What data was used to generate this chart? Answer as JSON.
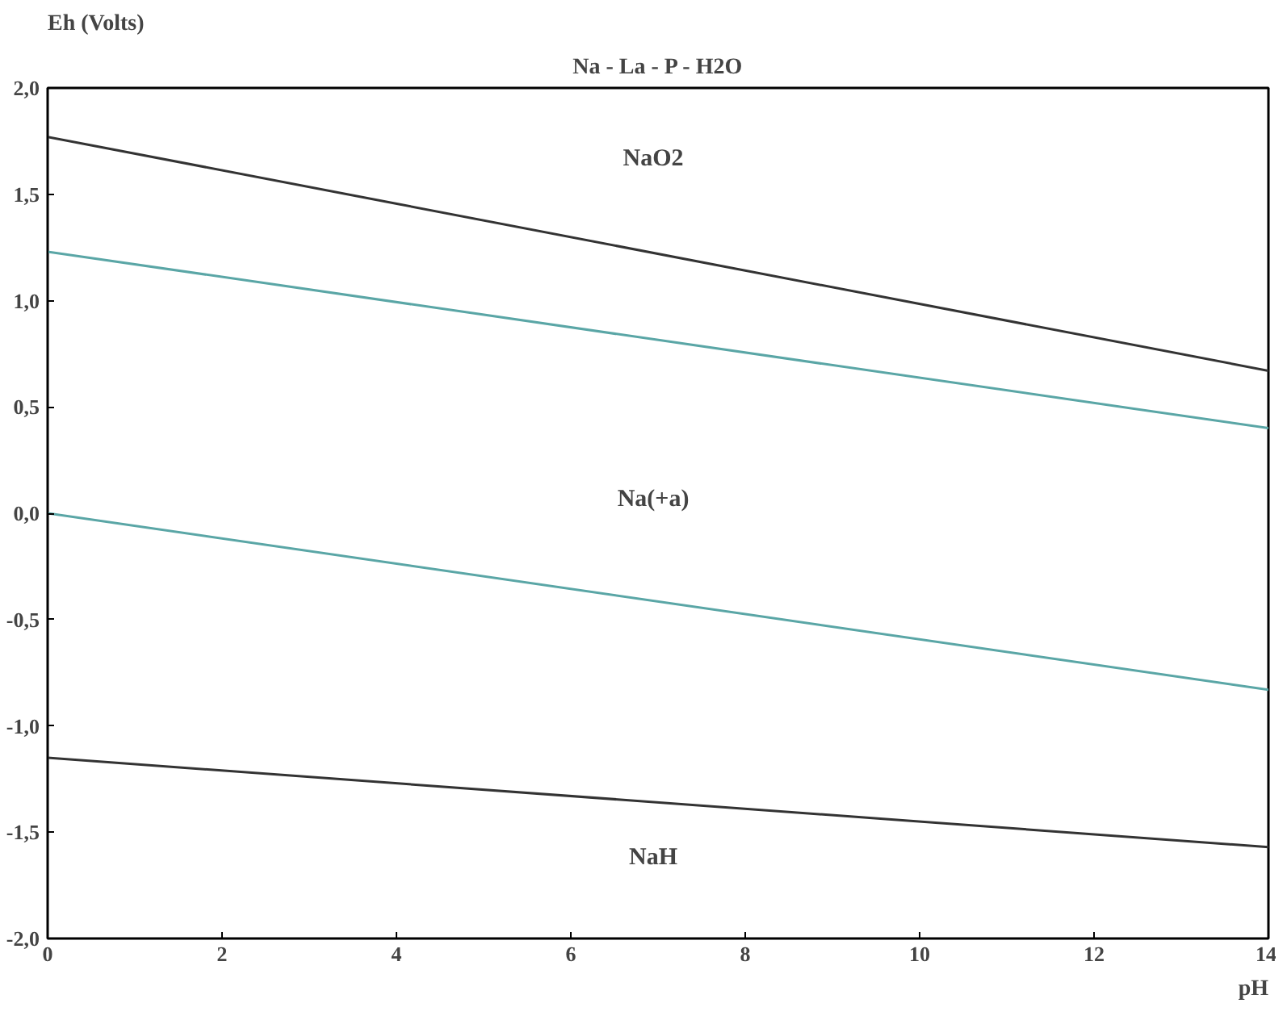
{
  "chart_data": {
    "type": "line",
    "title": "Na - La - P - H2O",
    "xlabel": "pH",
    "ylabel": "Eh (Volts)",
    "x": [
      0,
      14
    ],
    "series": [
      {
        "color": "#333333",
        "values": [
          1.77,
          0.67
        ]
      },
      {
        "color": "#5aa6a6",
        "values": [
          1.23,
          0.4
        ]
      },
      {
        "color": "#5aa6a6",
        "values": [
          0.0,
          -0.83
        ]
      },
      {
        "color": "#333333",
        "values": [
          -1.15,
          -1.57
        ]
      }
    ],
    "annotations": [
      "NaO2",
      "Na(+a)",
      "NaH"
    ],
    "xlim": [
      0,
      14
    ],
    "ylim": [
      -2,
      2
    ],
    "xticks": [
      0,
      2,
      4,
      6,
      8,
      10,
      12,
      14
    ],
    "yticks": [
      {
        "value": 2,
        "label": "2,0"
      },
      {
        "value": 1.5,
        "label": "1,5"
      },
      {
        "value": 1,
        "label": "1,0"
      },
      {
        "value": 0.5,
        "label": "0,5"
      },
      {
        "value": 0,
        "label": "0,0"
      },
      {
        "value": -0.5,
        "label": "-0,5"
      },
      {
        "value": -1,
        "label": "-1,0"
      },
      {
        "value": -1.5,
        "label": "-1,5"
      },
      {
        "value": -2,
        "label": "-2,0"
      }
    ],
    "grid": false,
    "marker": "none",
    "line_style": "solid"
  }
}
